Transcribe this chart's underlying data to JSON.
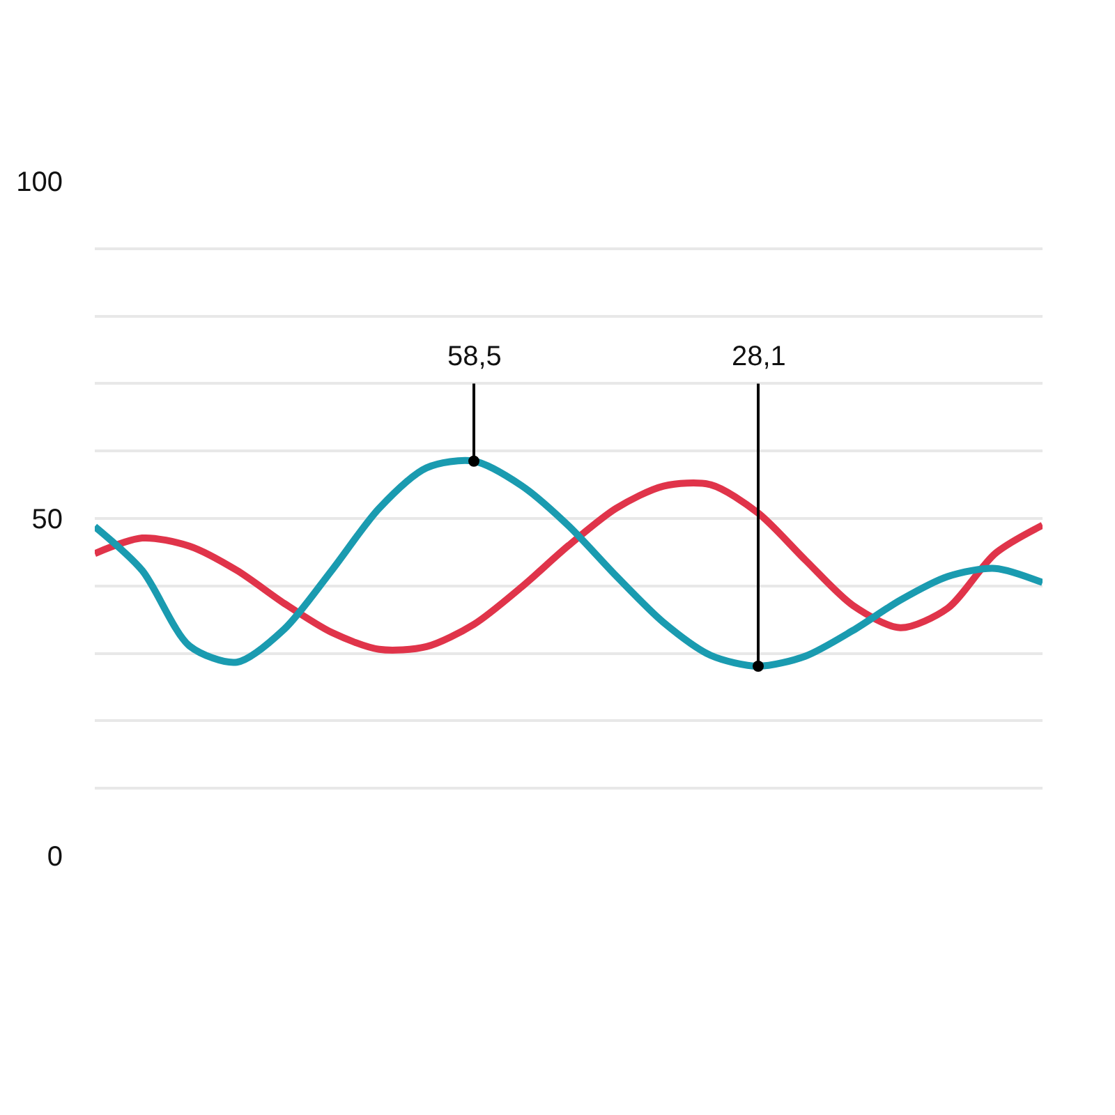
{
  "chart_data": {
    "type": "line",
    "categories": [
      null,
      null,
      null,
      null,
      null,
      null,
      null,
      null,
      null,
      null,
      null,
      null,
      null,
      null,
      null,
      null,
      null,
      null,
      null,
      null,
      null
    ],
    "series": [
      {
        "color": "#e0344a",
        "values": [
          44.8,
          47.1,
          45.9,
          42.3,
          37.4,
          33.1,
          30.6,
          31.0,
          34.3,
          39.8,
          46.0,
          51.5,
          54.8,
          55.0,
          50.8,
          43.8,
          37.1,
          33.8,
          36.7,
          44.8,
          49.0
        ]
      },
      {
        "color": "#1a9bb0",
        "values": [
          48.8,
          42.3,
          31.1,
          28.7,
          33.6,
          42.3,
          51.5,
          57.5,
          58.5,
          54.9,
          48.9,
          41.5,
          34.6,
          29.7,
          28.1,
          29.6,
          33.4,
          37.9,
          41.4,
          42.6,
          40.5
        ]
      }
    ],
    "ylim": [
      0,
      100
    ],
    "yticks": [
      0,
      {
        "value": 10,
        "label": null
      },
      {
        "value": 20,
        "label": null
      },
      {
        "value": 30,
        "label": null
      },
      {
        "value": 40,
        "label": null
      },
      50,
      {
        "value": 60,
        "label": null
      },
      {
        "value": 70,
        "label": null
      },
      {
        "value": 80,
        "label": null
      },
      {
        "value": 90,
        "label": null
      },
      100
    ],
    "grid": "y",
    "tick_labels": "y",
    "marker": "none",
    "line_style": "solid",
    "legend": false,
    "annotations": [
      {
        "text": "58,5",
        "y": 58.5
      },
      {
        "text": "28,1",
        "y": 28.1
      }
    ]
  }
}
